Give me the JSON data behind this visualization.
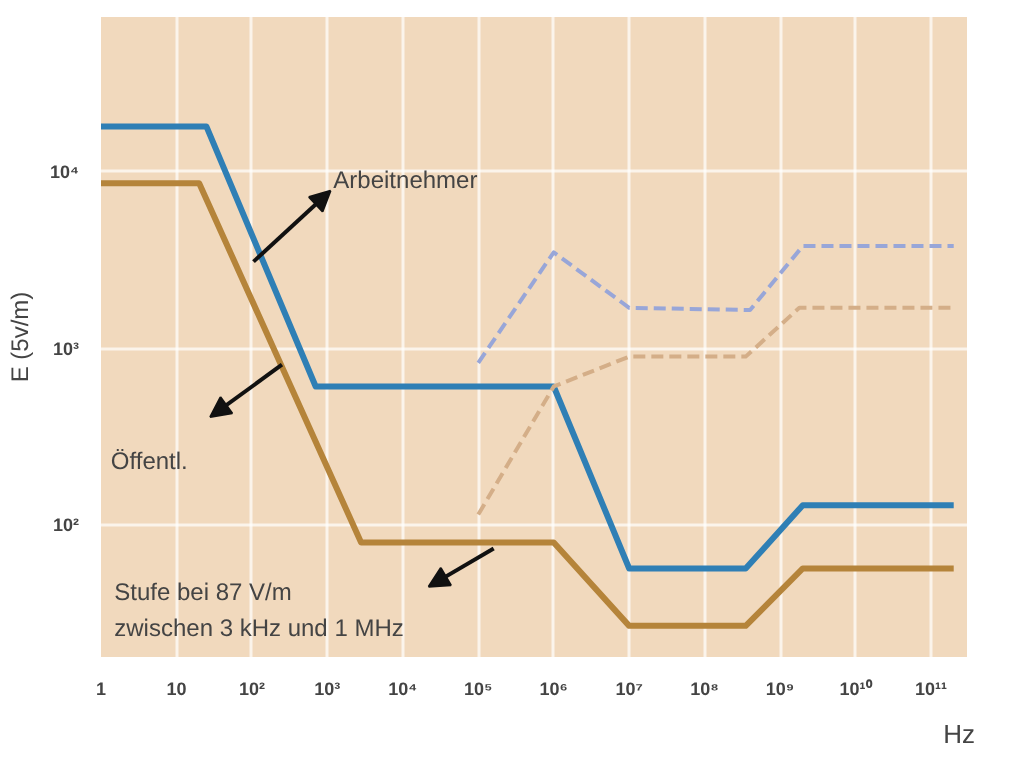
{
  "chart_data": {
    "type": "line",
    "xlabel": "Hz",
    "ylabel": "E (5v/m)",
    "log": "xy",
    "xlim": [
      1,
      300000000000
    ],
    "ylim": [
      18,
      75000
    ],
    "xticks": [
      1,
      10,
      {
        "value": 100,
        "label": "10²"
      },
      {
        "value": 1000,
        "label": "10³"
      },
      {
        "value": 10000,
        "label": "10⁴"
      },
      {
        "value": 100000,
        "label": "10⁵"
      },
      {
        "value": 1000000,
        "label": "10⁶"
      },
      {
        "value": 10000000,
        "label": "10⁷"
      },
      {
        "value": 100000000,
        "label": "10⁸"
      },
      {
        "value": 1000000000,
        "label": "10⁹"
      },
      {
        "value": 10000000000,
        "label": "10¹⁰"
      },
      {
        "value": 100000000000,
        "label": "10¹¹"
      }
    ],
    "yticks": [
      {
        "value": 100,
        "label": "10²"
      },
      {
        "value": 1000,
        "label": "10³"
      },
      {
        "value": 10000,
        "label": "10⁴"
      }
    ],
    "grid": true,
    "series": [
      {
        "color": "#2f7fb5",
        "line_style": "solid",
        "x": [
          1,
          25,
          700,
          1000000,
          10000000,
          350000000,
          2000000000,
          200000000000
        ],
        "values": [
          18000,
          18000,
          610,
          610,
          57,
          57,
          130,
          130
        ]
      },
      {
        "color": "#b5843a",
        "line_style": "solid",
        "x": [
          1,
          20,
          2800,
          1000000,
          10000000,
          350000000,
          2000000000,
          200000000000
        ],
        "values": [
          8600,
          8600,
          80,
          80,
          27,
          27,
          57,
          57
        ]
      },
      {
        "color": "#98a6d8",
        "line_style": "dashed",
        "x": [
          100000,
          1000000,
          10000000,
          400000000,
          2000000000,
          200000000000
        ],
        "values": [
          830,
          3500,
          1700,
          1650,
          3800,
          3800
        ]
      },
      {
        "color": "#d4ae88",
        "line_style": "dashed",
        "x": [
          100000,
          1000000,
          10000000,
          350000000,
          1800000000,
          200000000000
        ],
        "values": [
          115,
          610,
          900,
          900,
          1700,
          1700
        ]
      }
    ],
    "annotations": [
      "Arbeitnehmer",
      "Öffentl.",
      "Stufe bei 87 V/m\nzwischen 3 kHz und 1 MHz"
    ]
  }
}
